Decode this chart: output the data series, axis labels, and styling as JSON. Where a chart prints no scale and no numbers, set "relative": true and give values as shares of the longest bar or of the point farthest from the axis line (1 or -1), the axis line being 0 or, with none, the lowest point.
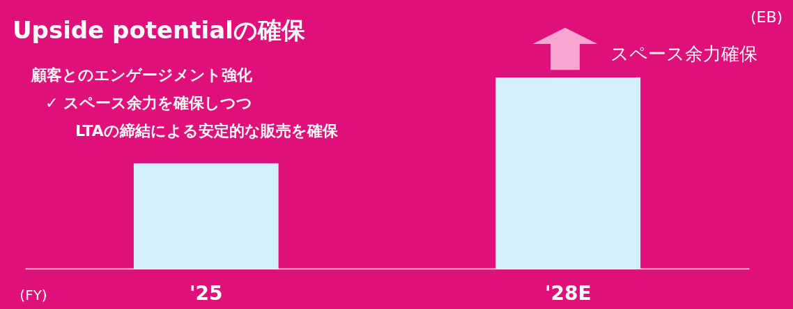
{
  "chart_data": {
    "type": "bar",
    "title": "Upside potentialの確保",
    "annotations": [
      "顧客とのエンゲージメント強化",
      "✓  スペース余力を確保しつつ",
      "LTAの締結による安定的な販売を確保",
      "スペース余力確保"
    ],
    "xlabel": "(FY)",
    "ylabel": "(EB)",
    "categories": [
      "'25",
      "'28E"
    ],
    "values": [
      0.55,
      1
    ],
    "color": "#d4eff8",
    "relative": true
  }
}
